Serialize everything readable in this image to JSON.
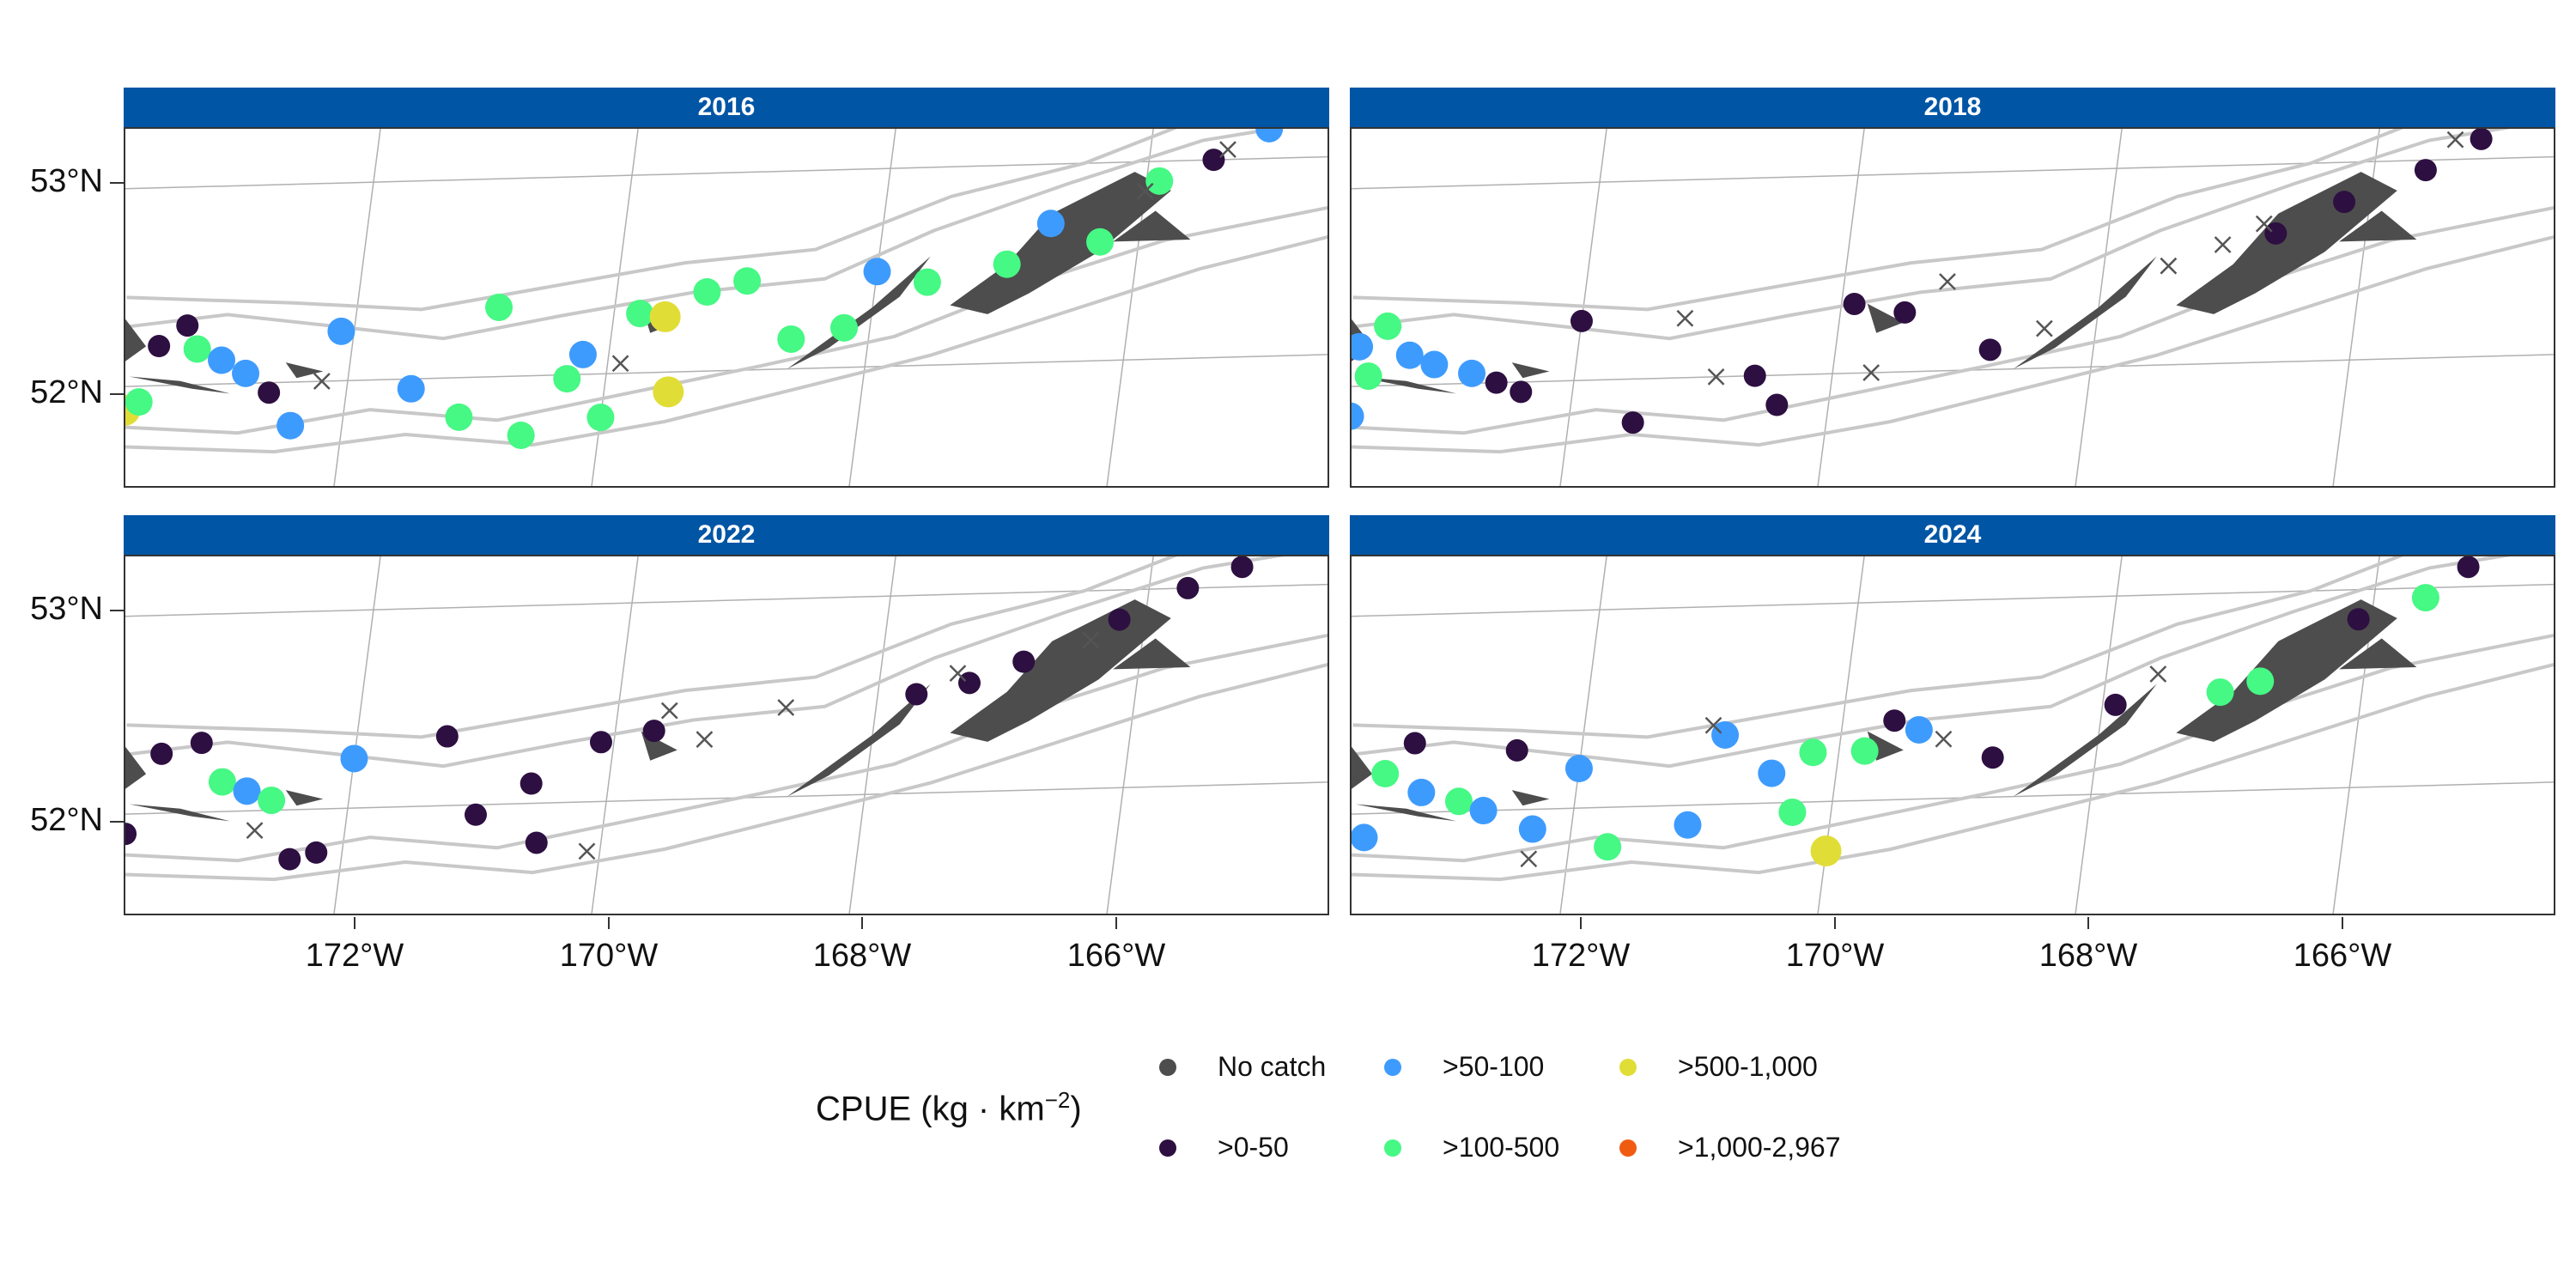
{
  "panels": [
    {
      "title": "2016"
    },
    {
      "title": "2018"
    },
    {
      "title": "2022"
    },
    {
      "title": "2024"
    }
  ],
  "axes": {
    "y_ticks": [
      "53°N",
      "52°N"
    ],
    "x_ticks": [
      "172°W",
      "170°W",
      "168°W",
      "166°W"
    ]
  },
  "legend": {
    "title": "CPUE (kg · km",
    "title_superscript": "−2",
    "title_close": ")",
    "items": [
      {
        "label": "No catch",
        "color": "#4d4d4d"
      },
      {
        "label": ">0-50",
        "color": "#2d0f41"
      },
      {
        "label": ">50-100",
        "color": "#3e9bfe"
      },
      {
        "label": ">100-500",
        "color": "#46f884"
      },
      {
        "label": ">500-1,000",
        "color": "#e1dd37"
      },
      {
        "label": ">1,000-2,967",
        "color": "#f05b12"
      }
    ]
  },
  "colors": {
    "strip": "#0055a5",
    "land": "#4d4d4d",
    "isobath": "#c8c8c8",
    "graticule": "#b0b0b0",
    "no_catch_marker": "#555555"
  },
  "map_data": {
    "lon_range": [
      -173.8,
      -164.5
    ],
    "lat_range": [
      51.5,
      53.3
    ],
    "survey_points": {
      "2016": [
        {
          "lon": -173.7,
          "lat": 51.88,
          "cpue": 600
        },
        {
          "lon": -173.6,
          "lat": 51.92,
          "cpue": 200
        },
        {
          "lon": -173.5,
          "lat": 52.2,
          "cpue": 30
        },
        {
          "lon": -173.3,
          "lat": 52.3,
          "cpue": 20
        },
        {
          "lon": -173.2,
          "lat": 52.18,
          "cpue": 200
        },
        {
          "lon": -173.0,
          "lat": 52.12,
          "cpue": 80
        },
        {
          "lon": -172.8,
          "lat": 52.05,
          "cpue": 70
        },
        {
          "lon": -172.6,
          "lat": 51.95,
          "cpue": 20
        },
        {
          "lon": -172.4,
          "lat": 51.78,
          "cpue": 80
        },
        {
          "lon": -172.1,
          "lat": 52.25,
          "cpue": 70
        },
        {
          "lon": -171.5,
          "lat": 51.95,
          "cpue": 70
        },
        {
          "lon": -171.1,
          "lat": 51.8,
          "cpue": 200
        },
        {
          "lon": -170.9,
          "lat": 52.35,
          "cpue": 150
        },
        {
          "lon": -170.6,
          "lat": 51.7,
          "cpue": 200
        },
        {
          "lon": -170.3,
          "lat": 51.98,
          "cpue": 200
        },
        {
          "lon": -170.2,
          "lat": 52.1,
          "cpue": 70
        },
        {
          "lon": -170.0,
          "lat": 51.78,
          "cpue": 200
        },
        {
          "lon": -169.8,
          "lat": 52.3,
          "cpue": 200
        },
        {
          "lon": -169.6,
          "lat": 52.28,
          "cpue": 600
        },
        {
          "lon": -169.5,
          "lat": 51.9,
          "cpue": 700
        },
        {
          "lon": -169.3,
          "lat": 52.4,
          "cpue": 200
        },
        {
          "lon": -169.0,
          "lat": 52.45,
          "cpue": 150
        },
        {
          "lon": -168.6,
          "lat": 52.15,
          "cpue": 200
        },
        {
          "lon": -168.2,
          "lat": 52.2,
          "cpue": 200
        },
        {
          "lon": -168.0,
          "lat": 52.48,
          "cpue": 70
        },
        {
          "lon": -167.6,
          "lat": 52.42,
          "cpue": 200
        },
        {
          "lon": -167.0,
          "lat": 52.5,
          "cpue": 200
        },
        {
          "lon": -166.7,
          "lat": 52.7,
          "cpue": 80
        },
        {
          "lon": -166.3,
          "lat": 52.6,
          "cpue": 200
        },
        {
          "lon": -165.9,
          "lat": 52.9,
          "cpue": 200
        },
        {
          "lon": -165.5,
          "lat": 53.0,
          "cpue": 20
        },
        {
          "lon": -165.1,
          "lat": 53.15,
          "cpue": 80
        },
        {
          "lon": -172.2,
          "lat": 52.0,
          "cpue": 0
        },
        {
          "lon": -169.9,
          "lat": 52.05,
          "cpue": 0
        },
        {
          "lon": -166.0,
          "lat": 52.85,
          "cpue": 0
        },
        {
          "lon": -165.4,
          "lat": 53.05,
          "cpue": 0
        }
      ],
      "2018": [
        {
          "lon": -173.7,
          "lat": 52.2,
          "cpue": 80
        },
        {
          "lon": -173.6,
          "lat": 52.05,
          "cpue": 200
        },
        {
          "lon": -173.5,
          "lat": 52.3,
          "cpue": 200
        },
        {
          "lon": -173.3,
          "lat": 52.15,
          "cpue": 70
        },
        {
          "lon": -173.1,
          "lat": 52.1,
          "cpue": 70
        },
        {
          "lon": -172.8,
          "lat": 52.05,
          "cpue": 80
        },
        {
          "lon": -172.6,
          "lat": 52.0,
          "cpue": 20
        },
        {
          "lon": -172.4,
          "lat": 51.95,
          "cpue": 30
        },
        {
          "lon": -173.7,
          "lat": 51.85,
          "cpue": 70
        },
        {
          "lon": -172.0,
          "lat": 52.3,
          "cpue": 20
        },
        {
          "lon": -171.5,
          "lat": 51.78,
          "cpue": 20
        },
        {
          "lon": -170.6,
          "lat": 52.0,
          "cpue": 20
        },
        {
          "lon": -170.4,
          "lat": 51.85,
          "cpue": 20
        },
        {
          "lon": -169.9,
          "lat": 52.35,
          "cpue": 20
        },
        {
          "lon": -169.5,
          "lat": 52.3,
          "cpue": 20
        },
        {
          "lon": -168.8,
          "lat": 52.1,
          "cpue": 20
        },
        {
          "lon": -166.7,
          "lat": 52.65,
          "cpue": 20
        },
        {
          "lon": -166.2,
          "lat": 52.8,
          "cpue": 20
        },
        {
          "lon": -165.6,
          "lat": 52.95,
          "cpue": 20
        },
        {
          "lon": -165.2,
          "lat": 53.1,
          "cpue": 20
        },
        {
          "lon": -171.2,
          "lat": 52.3,
          "cpue": 0
        },
        {
          "lon": -170.9,
          "lat": 52.0,
          "cpue": 0
        },
        {
          "lon": -169.7,
          "lat": 52.0,
          "cpue": 0
        },
        {
          "lon": -169.2,
          "lat": 52.45,
          "cpue": 0
        },
        {
          "lon": -168.4,
          "lat": 52.2,
          "cpue": 0
        },
        {
          "lon": -167.5,
          "lat": 52.5,
          "cpue": 0
        },
        {
          "lon": -167.1,
          "lat": 52.6,
          "cpue": 0
        },
        {
          "lon": -166.8,
          "lat": 52.7,
          "cpue": 0
        },
        {
          "lon": -165.4,
          "lat": 53.1,
          "cpue": 0
        }
      ],
      "2022": [
        {
          "lon": -173.7,
          "lat": 51.9,
          "cpue": 20
        },
        {
          "lon": -173.5,
          "lat": 52.3,
          "cpue": 20
        },
        {
          "lon": -173.2,
          "lat": 52.35,
          "cpue": 20
        },
        {
          "lon": -173.0,
          "lat": 52.15,
          "cpue": 200
        },
        {
          "lon": -172.8,
          "lat": 52.1,
          "cpue": 70
        },
        {
          "lon": -172.6,
          "lat": 52.05,
          "cpue": 200
        },
        {
          "lon": -172.4,
          "lat": 51.75,
          "cpue": 20
        },
        {
          "lon": -172.2,
          "lat": 51.78,
          "cpue": 20
        },
        {
          "lon": -172.0,
          "lat": 52.25,
          "cpue": 70
        },
        {
          "lon": -171.3,
          "lat": 52.35,
          "cpue": 20
        },
        {
          "lon": -171.0,
          "lat": 51.95,
          "cpue": 20
        },
        {
          "lon": -170.6,
          "lat": 52.1,
          "cpue": 20
        },
        {
          "lon": -170.5,
          "lat": 51.8,
          "cpue": 20
        },
        {
          "lon": -170.1,
          "lat": 52.3,
          "cpue": 20
        },
        {
          "lon": -169.7,
          "lat": 52.35,
          "cpue": 20
        },
        {
          "lon": -167.7,
          "lat": 52.5,
          "cpue": 20
        },
        {
          "lon": -167.3,
          "lat": 52.55,
          "cpue": 20
        },
        {
          "lon": -166.9,
          "lat": 52.65,
          "cpue": 20
        },
        {
          "lon": -166.2,
          "lat": 52.85,
          "cpue": 20
        },
        {
          "lon": -165.7,
          "lat": 53.0,
          "cpue": 20
        },
        {
          "lon": -165.3,
          "lat": 53.1,
          "cpue": 20
        },
        {
          "lon": -170.1,
          "lat": 51.75,
          "cpue": 0
        },
        {
          "lon": -169.6,
          "lat": 52.45,
          "cpue": 0
        },
        {
          "lon": -169.3,
          "lat": 52.3,
          "cpue": 0
        },
        {
          "lon": -168.7,
          "lat": 52.45,
          "cpue": 0
        },
        {
          "lon": -167.4,
          "lat": 52.6,
          "cpue": 0
        },
        {
          "lon": -166.4,
          "lat": 52.75,
          "cpue": 0
        },
        {
          "lon": -172.7,
          "lat": 51.9,
          "cpue": 0
        }
      ],
      "2024": [
        {
          "lon": -173.5,
          "lat": 52.2,
          "cpue": 200
        },
        {
          "lon": -173.2,
          "lat": 52.1,
          "cpue": 80
        },
        {
          "lon": -172.9,
          "lat": 52.05,
          "cpue": 200
        },
        {
          "lon": -172.7,
          "lat": 52.0,
          "cpue": 70
        },
        {
          "lon": -173.6,
          "lat": 51.88,
          "cpue": 70
        },
        {
          "lon": -172.3,
          "lat": 51.9,
          "cpue": 70
        },
        {
          "lon": -172.0,
          "lat": 52.2,
          "cpue": 70
        },
        {
          "lon": -171.7,
          "lat": 51.8,
          "cpue": 200
        },
        {
          "lon": -171.1,
          "lat": 51.9,
          "cpue": 70
        },
        {
          "lon": -170.9,
          "lat": 52.35,
          "cpue": 70
        },
        {
          "lon": -170.5,
          "lat": 52.15,
          "cpue": 70
        },
        {
          "lon": -170.3,
          "lat": 51.95,
          "cpue": 200
        },
        {
          "lon": -170.2,
          "lat": 52.25,
          "cpue": 200
        },
        {
          "lon": -170.0,
          "lat": 51.75,
          "cpue": 700
        },
        {
          "lon": -169.8,
          "lat": 52.25,
          "cpue": 200
        },
        {
          "lon": -169.4,
          "lat": 52.35,
          "cpue": 70
        },
        {
          "lon": -167.1,
          "lat": 52.5,
          "cpue": 200
        },
        {
          "lon": -166.8,
          "lat": 52.55,
          "cpue": 200
        },
        {
          "lon": -165.6,
          "lat": 52.95,
          "cpue": 200
        },
        {
          "lon": -165.3,
          "lat": 53.1,
          "cpue": 20
        },
        {
          "lon": -173.3,
          "lat": 52.35,
          "cpue": 20
        },
        {
          "lon": -172.5,
          "lat": 52.3,
          "cpue": 20
        },
        {
          "lon": -169.6,
          "lat": 52.4,
          "cpue": 20
        },
        {
          "lon": -168.8,
          "lat": 52.2,
          "cpue": 20
        },
        {
          "lon": -167.9,
          "lat": 52.45,
          "cpue": 20
        },
        {
          "lon": -166.1,
          "lat": 52.85,
          "cpue": 20
        },
        {
          "lon": -169.2,
          "lat": 52.3,
          "cpue": 0
        },
        {
          "lon": -167.6,
          "lat": 52.6,
          "cpue": 0
        },
        {
          "lon": -172.3,
          "lat": 51.75,
          "cpue": 0
        },
        {
          "lon": -171.0,
          "lat": 52.4,
          "cpue": 0
        }
      ]
    }
  }
}
